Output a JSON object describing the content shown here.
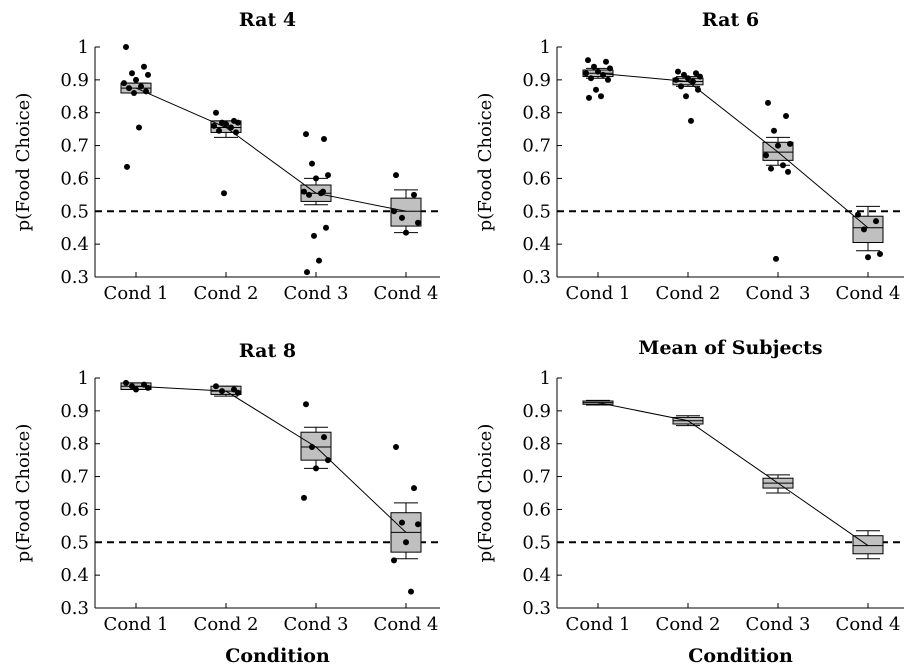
{
  "chart_data": [
    {
      "type": "box",
      "title": "Rat 4",
      "xlabel": "",
      "ylabel": "p(Food Choice)",
      "ylim": [
        0.3,
        1.0
      ],
      "yticks": [
        "0.3",
        "0.4",
        "0.5",
        "0.6",
        "0.7",
        "0.8",
        "0.9",
        "1"
      ],
      "categories": [
        "Cond 1",
        "Cond 2",
        "Cond 3",
        "Cond 4"
      ],
      "reference_line": 0.5,
      "mean_line": [
        0.875,
        0.755,
        0.555,
        0.5
      ],
      "boxes": [
        {
          "q1": 0.86,
          "median": 0.875,
          "q3": 0.89,
          "lower": 0.86,
          "upper": 0.89
        },
        {
          "q1": 0.74,
          "median": 0.755,
          "q3": 0.775,
          "lower": 0.725,
          "upper": 0.775
        },
        {
          "q1": 0.53,
          "median": 0.555,
          "q3": 0.58,
          "lower": 0.52,
          "upper": 0.6
        },
        {
          "q1": 0.455,
          "median": 0.5,
          "q3": 0.54,
          "lower": 0.435,
          "upper": 0.565
        }
      ],
      "points": [
        [
          1.0,
          0.94,
          0.92,
          0.915,
          0.9,
          0.89,
          0.88,
          0.875,
          0.865,
          0.86,
          0.755,
          0.635
        ],
        [
          0.8,
          0.775,
          0.77,
          0.77,
          0.765,
          0.76,
          0.755,
          0.745,
          0.74,
          0.555
        ],
        [
          0.735,
          0.72,
          0.645,
          0.61,
          0.6,
          0.56,
          0.555,
          0.55,
          0.45,
          0.425,
          0.35,
          0.315,
          0.56
        ],
        [
          0.61,
          0.55,
          0.48,
          0.465,
          0.435,
          0.5
        ]
      ]
    },
    {
      "type": "box",
      "title": "Rat 6",
      "xlabel": "",
      "ylabel": "p(Food Choice)",
      "ylim": [
        0.3,
        1.0
      ],
      "yticks": [
        "0.3",
        "0.4",
        "0.5",
        "0.6",
        "0.7",
        "0.8",
        "0.9",
        "1"
      ],
      "categories": [
        "Cond 1",
        "Cond 2",
        "Cond 3",
        "Cond 4"
      ],
      "reference_line": 0.5,
      "mean_line": [
        0.92,
        0.895,
        0.68,
        0.45
      ],
      "boxes": [
        {
          "q1": 0.91,
          "median": 0.92,
          "q3": 0.93,
          "lower": 0.905,
          "upper": 0.935
        },
        {
          "q1": 0.885,
          "median": 0.895,
          "q3": 0.905,
          "lower": 0.88,
          "upper": 0.91
        },
        {
          "q1": 0.655,
          "median": 0.68,
          "q3": 0.71,
          "lower": 0.64,
          "upper": 0.725
        },
        {
          "q1": 0.405,
          "median": 0.45,
          "q3": 0.485,
          "lower": 0.38,
          "upper": 0.515
        }
      ],
      "points": [
        [
          0.96,
          0.955,
          0.94,
          0.935,
          0.925,
          0.92,
          0.915,
          0.905,
          0.9,
          0.87,
          0.85,
          0.845
        ],
        [
          0.925,
          0.92,
          0.915,
          0.91,
          0.905,
          0.9,
          0.895,
          0.88,
          0.87,
          0.85,
          0.775
        ],
        [
          0.83,
          0.79,
          0.745,
          0.705,
          0.7,
          0.67,
          0.64,
          0.63,
          0.62,
          0.355
        ],
        [
          0.49,
          0.47,
          0.445,
          0.37,
          0.36
        ]
      ]
    },
    {
      "type": "box",
      "title": "Rat 8",
      "xlabel": "Condition",
      "ylabel": "p(Food Choice)",
      "ylim": [
        0.3,
        1.0
      ],
      "yticks": [
        "0.3",
        "0.4",
        "0.5",
        "0.6",
        "0.7",
        "0.8",
        "0.9",
        "1"
      ],
      "categories": [
        "Cond 1",
        "Cond 2",
        "Cond 3",
        "Cond 4"
      ],
      "reference_line": 0.5,
      "mean_line": [
        0.975,
        0.96,
        0.79,
        0.53
      ],
      "boxes": [
        {
          "q1": 0.965,
          "median": 0.975,
          "q3": 0.985,
          "lower": 0.965,
          "upper": 0.985
        },
        {
          "q1": 0.95,
          "median": 0.96,
          "q3": 0.975,
          "lower": 0.945,
          "upper": 0.975
        },
        {
          "q1": 0.75,
          "median": 0.79,
          "q3": 0.835,
          "lower": 0.725,
          "upper": 0.85
        },
        {
          "q1": 0.47,
          "median": 0.53,
          "q3": 0.59,
          "lower": 0.45,
          "upper": 0.62
        }
      ],
      "points": [
        [
          0.985,
          0.98,
          0.975,
          0.97,
          0.965
        ],
        [
          0.975,
          0.965,
          0.96,
          0.955
        ],
        [
          0.92,
          0.82,
          0.79,
          0.75,
          0.725,
          0.635
        ],
        [
          0.79,
          0.665,
          0.56,
          0.555,
          0.5,
          0.445,
          0.35
        ]
      ]
    },
    {
      "type": "box",
      "title": "Mean of Subjects",
      "xlabel": "Condition",
      "ylabel": "p(Food Choice)",
      "ylim": [
        0.3,
        1.0
      ],
      "yticks": [
        "0.3",
        "0.4",
        "0.5",
        "0.6",
        "0.7",
        "0.8",
        "0.9",
        "1"
      ],
      "categories": [
        "Cond 1",
        "Cond 2",
        "Cond 3",
        "Cond 4"
      ],
      "reference_line": 0.5,
      "mean_line": [
        0.925,
        0.87,
        0.68,
        0.49
      ],
      "boxes": [
        {
          "q1": 0.92,
          "median": 0.925,
          "q3": 0.93,
          "lower": 0.918,
          "upper": 0.932
        },
        {
          "q1": 0.86,
          "median": 0.87,
          "q3": 0.88,
          "lower": 0.855,
          "upper": 0.885
        },
        {
          "q1": 0.665,
          "median": 0.68,
          "q3": 0.695,
          "lower": 0.65,
          "upper": 0.705
        },
        {
          "q1": 0.465,
          "median": 0.49,
          "q3": 0.52,
          "lower": 0.45,
          "upper": 0.535
        }
      ],
      "points": [
        [],
        [],
        [],
        []
      ]
    }
  ],
  "colors": {
    "box_fill": "#c0c0c0",
    "stroke": "#000000"
  }
}
